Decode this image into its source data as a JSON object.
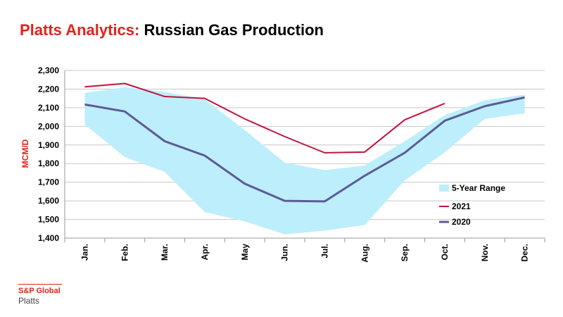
{
  "header": {
    "brand": "Platts Analytics:",
    "title": "Russian Gas Production"
  },
  "logo": {
    "line1": "S&P Global",
    "line2": "Platts"
  },
  "colors": {
    "brand_red": "#e2231a",
    "range_fill": "#bdeefb",
    "series_2021": "#c0143c",
    "series_2020": "#5b5b96",
    "grid": "#c8c8c8"
  },
  "chart_data": {
    "type": "line",
    "ylabel": "MCM/D",
    "xlabel": "",
    "ylim": [
      1400,
      2300
    ],
    "yticks": [
      "1,400",
      "1,500",
      "1,600",
      "1,700",
      "1,800",
      "1,900",
      "2,000",
      "2,100",
      "2,200",
      "2,300"
    ],
    "categories": [
      "Jan.",
      "Feb.",
      "Mar.",
      "Apr.",
      "May",
      "Jun.",
      "Jul.",
      "Aug.",
      "Sep.",
      "Oct.",
      "Nov.",
      "Dec."
    ],
    "grid": true,
    "legend_position": "right",
    "range": {
      "name": "5-Year Range",
      "low": [
        2010,
        1835,
        1755,
        1540,
        1490,
        1420,
        1440,
        1470,
        1710,
        1860,
        2040,
        2070
      ],
      "high": [
        2180,
        2210,
        2185,
        2145,
        1980,
        1805,
        1765,
        1790,
        1920,
        2060,
        2140,
        2170
      ]
    },
    "series": [
      {
        "name": "2021",
        "values": [
          2212,
          2230,
          2160,
          2150,
          2040,
          1945,
          1858,
          1862,
          2035,
          2123,
          null,
          null
        ]
      },
      {
        "name": "2020",
        "values": [
          2117,
          2080,
          1920,
          1843,
          1692,
          1600,
          1597,
          1735,
          1858,
          2030,
          2108,
          2155
        ]
      }
    ]
  }
}
